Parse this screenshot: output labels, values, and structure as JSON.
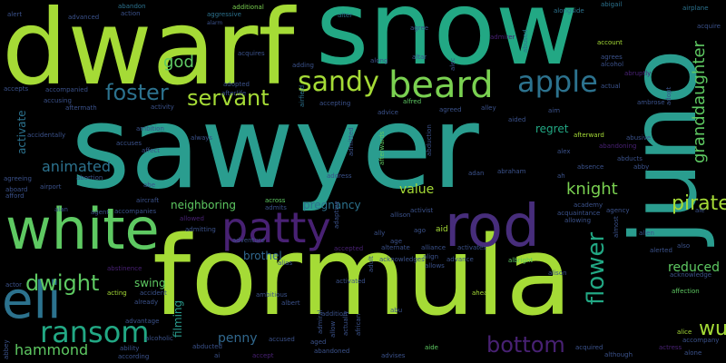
{
  "colors": {
    "lime": "#a5db36",
    "green": "#7ad151",
    "mint": "#5ec962",
    "teal": "#2a9d8f",
    "seafoam": "#22a884",
    "blue": "#31688e",
    "slate": "#3b528b",
    "purple": "#472d7b",
    "violet": "#482173",
    "sky": "#2c728e"
  },
  "words": [
    {
      "text": "dwarf",
      "weight": 90
    },
    {
      "text": "snow",
      "weight": 95
    },
    {
      "text": "sawyer",
      "weight": 100
    },
    {
      "text": "formula",
      "weight": 98
    },
    {
      "text": "juno",
      "weight": 88
    },
    {
      "text": "white",
      "weight": 70
    },
    {
      "text": "rod",
      "weight": 65
    },
    {
      "text": "patty",
      "weight": 60
    },
    {
      "text": "eli",
      "weight": 62
    },
    {
      "text": "beard",
      "weight": 45
    },
    {
      "text": "apple",
      "weight": 40
    },
    {
      "text": "sandy",
      "weight": 35
    },
    {
      "text": "ransom",
      "weight": 38
    },
    {
      "text": "foster",
      "weight": 32
    },
    {
      "text": "servant",
      "weight": 30
    },
    {
      "text": "dwight",
      "weight": 28
    },
    {
      "text": "flower",
      "weight": 30
    },
    {
      "text": "bottom",
      "weight": 28
    },
    {
      "text": "pirate",
      "weight": 26
    },
    {
      "text": "knight",
      "weight": 22
    },
    {
      "text": "granddaughter",
      "weight": 22
    },
    {
      "text": "animated",
      "weight": 20
    },
    {
      "text": "hammond",
      "weight": 20
    },
    {
      "text": "god",
      "weight": 20
    },
    {
      "text": "wu",
      "weight": 22
    },
    {
      "text": "reduced",
      "weight": 18
    },
    {
      "text": "value",
      "weight": 18
    },
    {
      "text": "regret",
      "weight": 14
    },
    {
      "text": "activate",
      "weight": 14
    },
    {
      "text": "brothel",
      "weight": 14
    },
    {
      "text": "neighboring",
      "weight": 14
    },
    {
      "text": "pregnancy",
      "weight": 14
    },
    {
      "text": "filming",
      "weight": 14
    },
    {
      "text": "penny",
      "weight": 16
    },
    {
      "text": "swing",
      "weight": 14
    },
    {
      "text": "alert",
      "weight": 5
    },
    {
      "text": "advanced",
      "weight": 5
    },
    {
      "text": "abandon",
      "weight": 5
    },
    {
      "text": "action",
      "weight": 5
    },
    {
      "text": "aggressive",
      "weight": 5
    },
    {
      "text": "additional",
      "weight": 5
    },
    {
      "text": "alarm",
      "weight": 5
    },
    {
      "text": "alter",
      "weight": 5
    },
    {
      "text": "admirer",
      "weight": 5
    },
    {
      "text": "abused",
      "weight": 5
    },
    {
      "text": "abigail",
      "weight": 5
    },
    {
      "text": "airplane",
      "weight": 5
    },
    {
      "text": "alongside",
      "weight": 5
    },
    {
      "text": "acquire",
      "weight": 5
    },
    {
      "text": "agree",
      "weight": 5
    },
    {
      "text": "account",
      "weight": 5
    },
    {
      "text": "agrees",
      "weight": 5
    },
    {
      "text": "alcohol",
      "weight": 5
    },
    {
      "text": "abruptly",
      "weight": 5
    },
    {
      "text": "actual",
      "weight": 5
    },
    {
      "text": "adopted",
      "weight": 5
    },
    {
      "text": "afterlife",
      "weight": 5
    },
    {
      "text": "acquires",
      "weight": 5
    },
    {
      "text": "adding",
      "weight": 5
    },
    {
      "text": "along",
      "weight": 5
    },
    {
      "text": "altar",
      "weight": 5
    },
    {
      "text": "alec",
      "weight": 5
    },
    {
      "text": "accepts",
      "weight": 5
    },
    {
      "text": "accompanied",
      "weight": 5
    },
    {
      "text": "accusing",
      "weight": 5
    },
    {
      "text": "aftermath",
      "weight": 5
    },
    {
      "text": "activity",
      "weight": 5
    },
    {
      "text": "airfield",
      "weight": 5
    },
    {
      "text": "accepting",
      "weight": 5
    },
    {
      "text": "alfred",
      "weight": 5
    },
    {
      "text": "agreed",
      "weight": 5
    },
    {
      "text": "advice",
      "weight": 5
    },
    {
      "text": "alley",
      "weight": 5
    },
    {
      "text": "aided",
      "weight": 5
    },
    {
      "text": "aim",
      "weight": 5
    },
    {
      "text": "ambrose",
      "weight": 5
    },
    {
      "text": "adopt",
      "weight": 5
    },
    {
      "text": "accidentally",
      "weight": 5
    },
    {
      "text": "ambition",
      "weight": 5
    },
    {
      "text": "always",
      "weight": 5
    },
    {
      "text": "accuses",
      "weight": 5
    },
    {
      "text": "affect",
      "weight": 5
    },
    {
      "text": "admitted",
      "weight": 5
    },
    {
      "text": "afterwards",
      "weight": 5
    },
    {
      "text": "abduction",
      "weight": 5
    },
    {
      "text": "afterward",
      "weight": 5
    },
    {
      "text": "abusive",
      "weight": 5
    },
    {
      "text": "alex",
      "weight": 5
    },
    {
      "text": "abandoning",
      "weight": 5
    },
    {
      "text": "abducts",
      "weight": 5
    },
    {
      "text": "absence",
      "weight": 5
    },
    {
      "text": "abby",
      "weight": 5
    },
    {
      "text": "agreeing",
      "weight": 5
    },
    {
      "text": "airport",
      "weight": 5
    },
    {
      "text": "abortion",
      "weight": 5
    },
    {
      "text": "abe",
      "weight": 5
    },
    {
      "text": "address",
      "weight": 5
    },
    {
      "text": "adan",
      "weight": 5
    },
    {
      "text": "abraham",
      "weight": 5
    },
    {
      "text": "ah",
      "weight": 5
    },
    {
      "text": "aboard",
      "weight": 5
    },
    {
      "text": "afford",
      "weight": 5
    },
    {
      "text": "aircraft",
      "weight": 5
    },
    {
      "text": "accompanies",
      "weight": 5
    },
    {
      "text": "across",
      "weight": 5
    },
    {
      "text": "admits",
      "weight": 5
    },
    {
      "text": "activist",
      "weight": 5
    },
    {
      "text": "academy",
      "weight": 5
    },
    {
      "text": "agency",
      "weight": 5
    },
    {
      "text": "acquaintance",
      "weight": 5
    },
    {
      "text": "alan",
      "weight": 5
    },
    {
      "text": "agent",
      "weight": 5
    },
    {
      "text": "adaptive",
      "weight": 5
    },
    {
      "text": "allison",
      "weight": 5
    },
    {
      "text": "aid",
      "weight": 5
    },
    {
      "text": "allowing",
      "weight": 5
    },
    {
      "text": "almost",
      "weight": 5
    },
    {
      "text": "allen",
      "weight": 5
    },
    {
      "text": "ale",
      "weight": 5
    },
    {
      "text": "allowed",
      "weight": 5
    },
    {
      "text": "admitting",
      "weight": 5
    },
    {
      "text": "adventure",
      "weight": 5
    },
    {
      "text": "ally",
      "weight": 5
    },
    {
      "text": "ago",
      "weight": 5
    },
    {
      "text": "age",
      "weight": 5
    },
    {
      "text": "alternate",
      "weight": 5
    },
    {
      "text": "alliance",
      "weight": 5
    },
    {
      "text": "activates",
      "weight": 5
    },
    {
      "text": "alerted",
      "weight": 5
    },
    {
      "text": "also",
      "weight": 5
    },
    {
      "text": "ambitious",
      "weight": 5
    },
    {
      "text": "albert",
      "weight": 5
    },
    {
      "text": "accepted",
      "weight": 5
    },
    {
      "text": "adult",
      "weight": 5
    },
    {
      "text": "acknowledges",
      "weight": 5
    },
    {
      "text": "align",
      "weight": 5
    },
    {
      "text": "allows",
      "weight": 5
    },
    {
      "text": "advance",
      "weight": 5
    },
    {
      "text": "abu",
      "weight": 5
    },
    {
      "text": "albright",
      "weight": 5
    },
    {
      "text": "alison",
      "weight": 5
    },
    {
      "text": "acknowledge",
      "weight": 5
    },
    {
      "text": "ability",
      "weight": 5
    },
    {
      "text": "alias",
      "weight": 5
    },
    {
      "text": "abstinence",
      "weight": 5
    },
    {
      "text": "actor",
      "weight": 5
    },
    {
      "text": "acting",
      "weight": 5
    },
    {
      "text": "accident",
      "weight": 5
    },
    {
      "text": "already",
      "weight": 5
    },
    {
      "text": "activated",
      "weight": 5
    },
    {
      "text": "ahead",
      "weight": 5
    },
    {
      "text": "affection",
      "weight": 5
    },
    {
      "text": "addition",
      "weight": 5
    },
    {
      "text": "admiral",
      "weight": 5
    },
    {
      "text": "allow",
      "weight": 5
    },
    {
      "text": "actually",
      "weight": 5
    },
    {
      "text": "african",
      "weight": 5
    },
    {
      "text": "advantage",
      "weight": 5
    },
    {
      "text": "alcoholic",
      "weight": 5
    },
    {
      "text": "accused",
      "weight": 5
    },
    {
      "text": "aged",
      "weight": 5
    },
    {
      "text": "alice",
      "weight": 5
    },
    {
      "text": "according",
      "weight": 5
    },
    {
      "text": "abducted",
      "weight": 5
    },
    {
      "text": "ai",
      "weight": 5
    },
    {
      "text": "accept",
      "weight": 5
    },
    {
      "text": "abandoned",
      "weight": 5
    },
    {
      "text": "advises",
      "weight": 5
    },
    {
      "text": "aide",
      "weight": 5
    },
    {
      "text": "acquired",
      "weight": 5
    },
    {
      "text": "although",
      "weight": 5
    },
    {
      "text": "accompany",
      "weight": 5
    },
    {
      "text": "actress",
      "weight": 5
    },
    {
      "text": "alone",
      "weight": 5
    },
    {
      "text": "abbey",
      "weight": 5
    }
  ]
}
